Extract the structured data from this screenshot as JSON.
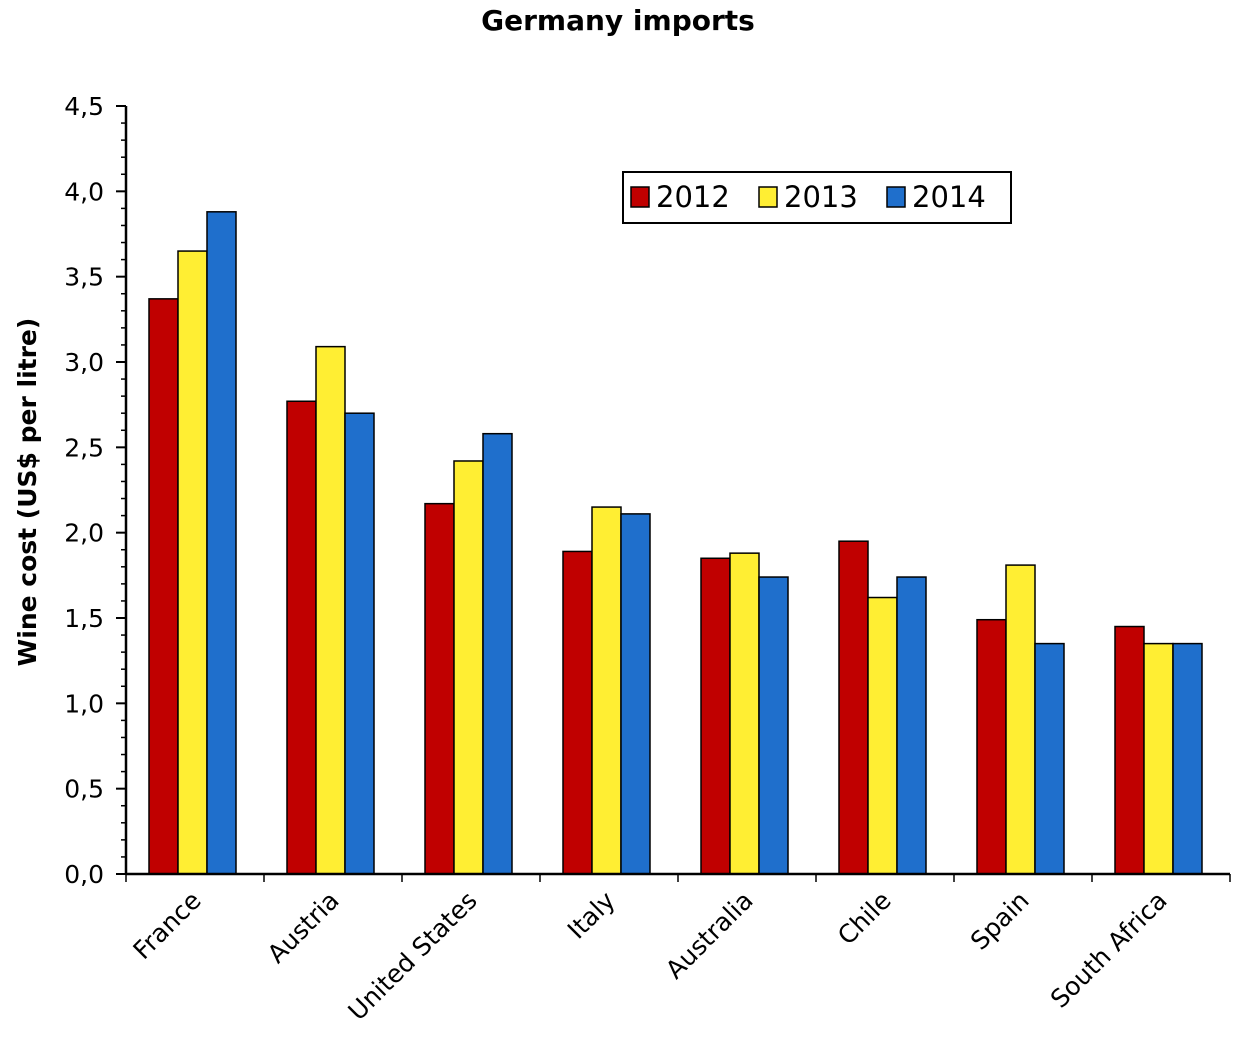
{
  "chart_data": {
    "type": "bar",
    "title": "Germany imports",
    "xlabel": "",
    "ylabel": "Wine cost (US$ per litre)",
    "ylim": [
      0,
      4.5
    ],
    "yticks": [
      "0,0",
      "0,5",
      "1,0",
      "1,5",
      "2,0",
      "2,5",
      "3,0",
      "3,5",
      "4,0",
      "4,5"
    ],
    "categories": [
      "France",
      "Austria",
      "United States",
      "Italy",
      "Australia",
      "Chile",
      "Spain",
      "South Africa"
    ],
    "series": [
      {
        "name": "2012",
        "color": "#c00000",
        "values": [
          3.37,
          2.77,
          2.17,
          1.89,
          1.85,
          1.95,
          1.49,
          1.45
        ]
      },
      {
        "name": "2013",
        "color": "#ffee33",
        "values": [
          3.65,
          3.09,
          2.42,
          2.15,
          1.88,
          1.62,
          1.81,
          1.35
        ]
      },
      {
        "name": "2014",
        "color": "#1f6fcc",
        "values": [
          3.88,
          2.7,
          2.58,
          2.11,
          1.74,
          1.74,
          1.35,
          1.35
        ]
      }
    ],
    "grid": false,
    "legend": "top-right"
  }
}
